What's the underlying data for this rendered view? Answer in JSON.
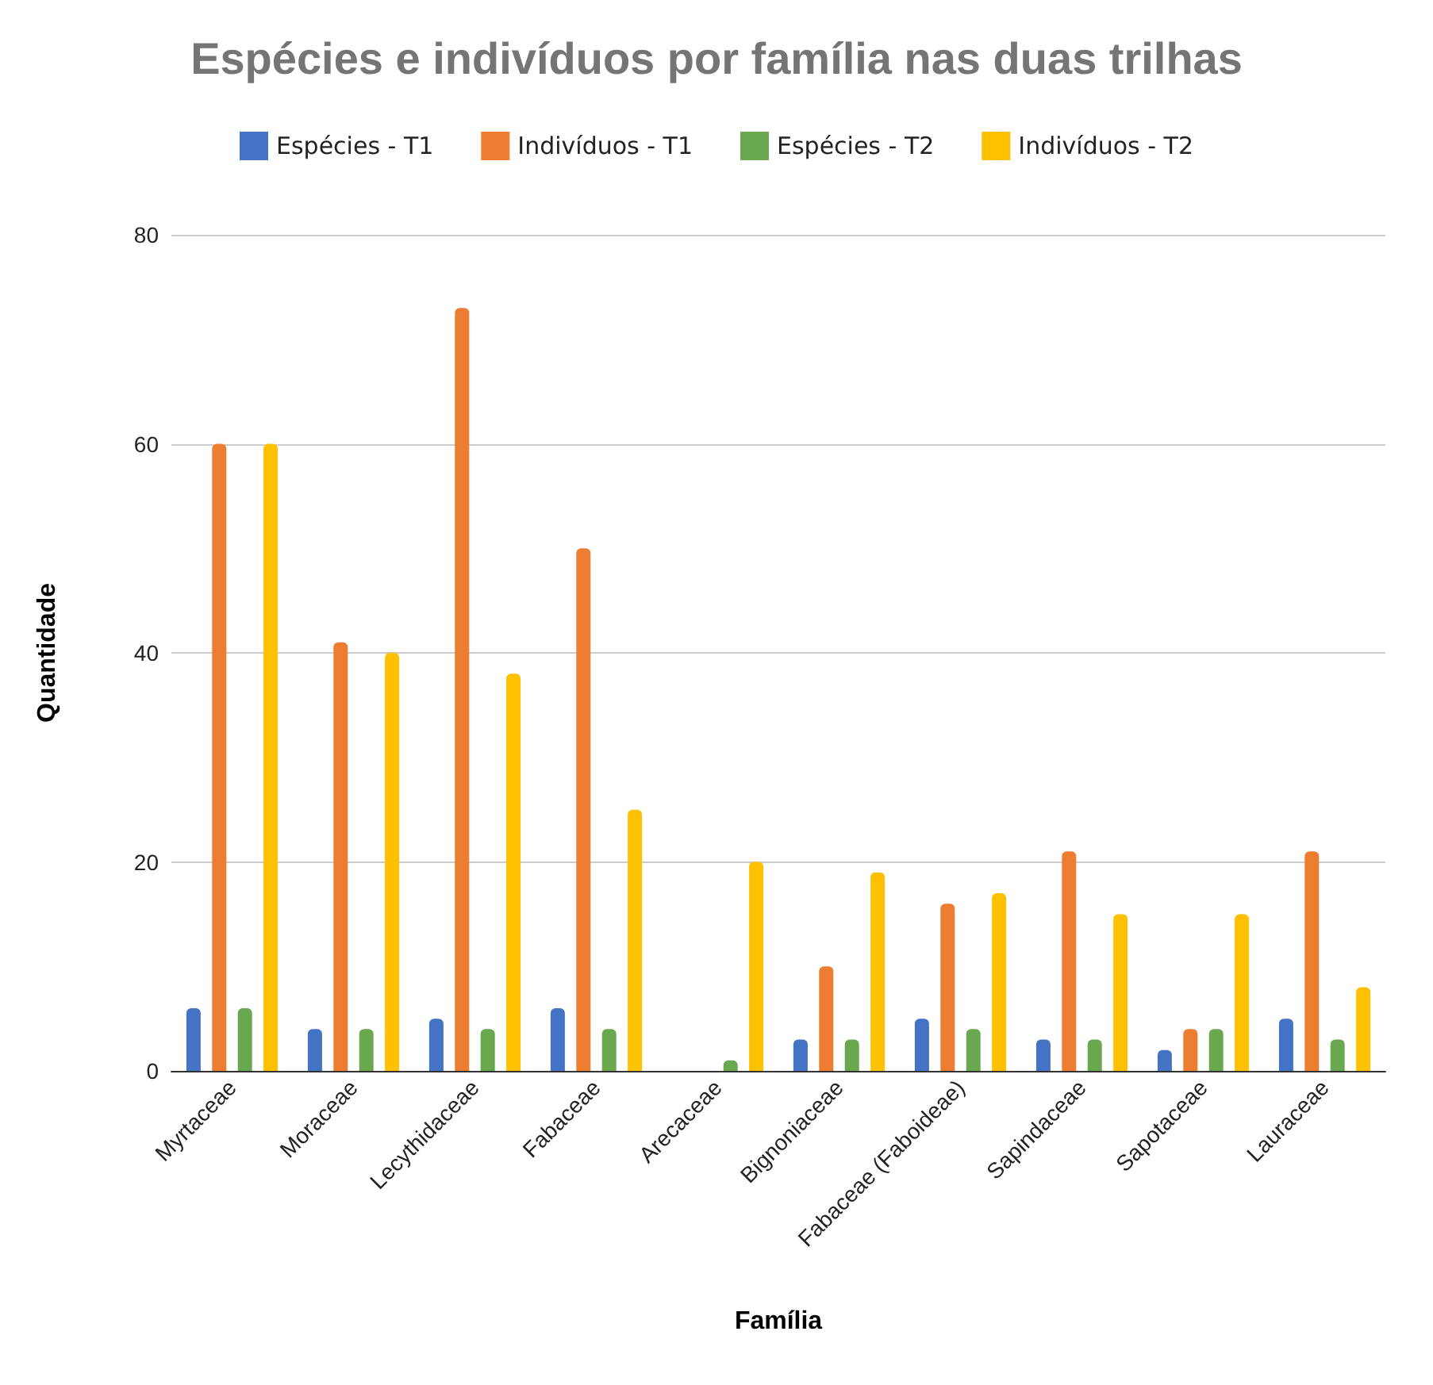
{
  "chart_data": {
    "type": "bar",
    "title": "Espécies e indivíduos por família nas duas trilhas",
    "xlabel": "Família",
    "ylabel": "Quantidade",
    "categories": [
      "Myrtaceae",
      "Moraceae",
      "Lecythidaceae",
      "Fabaceae",
      "Arecaceae",
      "Bignoniaceae",
      "Fabaceae (Faboideae)",
      "Sapindaceae",
      "Sapotaceae",
      "Lauraceae"
    ],
    "series": [
      {
        "name": "Espécies - T1",
        "color": "#4472c4",
        "values": [
          6,
          4,
          5,
          6,
          null,
          3,
          5,
          3,
          2,
          5
        ]
      },
      {
        "name": "Indivíduos - T1",
        "color": "#ed7d31",
        "values": [
          60,
          41,
          73,
          50,
          null,
          10,
          16,
          21,
          4,
          21
        ]
      },
      {
        "name": "Espécies - T2",
        "color": "#6aa84f",
        "values": [
          6,
          4,
          4,
          4,
          1,
          3,
          4,
          3,
          4,
          3
        ]
      },
      {
        "name": "Indivíduos - T2",
        "color": "#ffc000",
        "values": [
          60,
          40,
          38,
          25,
          20,
          19,
          17,
          15,
          15,
          8
        ]
      }
    ],
    "ylim": [
      0,
      80
    ],
    "yticks": [
      0,
      20,
      40,
      60,
      80
    ],
    "grid": "y",
    "legend": "top"
  }
}
